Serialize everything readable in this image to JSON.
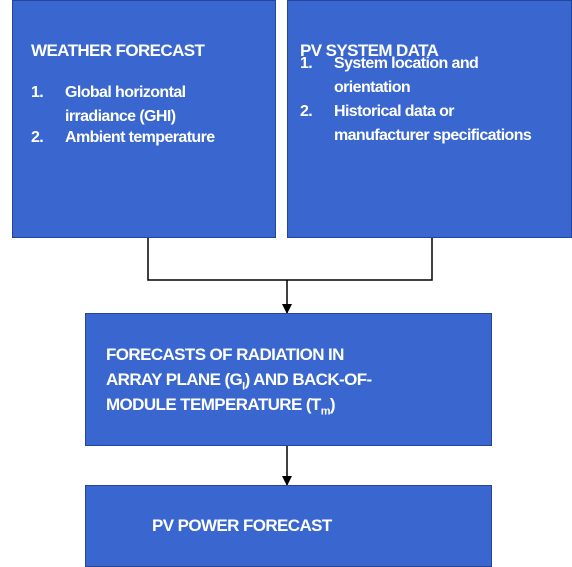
{
  "nodes": [
    {
      "title": "WEATHER FORECAST",
      "items": [
        {
          "number": "1.",
          "lines": [
            "Global horizontal",
            "irradiance (GHI)"
          ]
        },
        {
          "number": "2.",
          "lines": [
            "Ambient temperature"
          ]
        }
      ]
    },
    {
      "title": "PV SYSTEM DATA",
      "items": [
        {
          "number": "1.",
          "lines": [
            "System location and",
            "orientation"
          ]
        },
        {
          "number": "2.",
          "lines": [
            "Historical data or",
            "manufacturer specifications"
          ]
        }
      ]
    },
    {
      "lines": [
        [
          "FORECASTS OF RADIATION IN"
        ],
        [
          "ARRAY PLANE (G",
          "I",
          ") AND BACK-OF-"
        ],
        [
          "MODULE TEMPERATURE (T",
          "m",
          ")"
        ]
      ]
    },
    {
      "lines": [
        [
          "PV POWER FORECAST"
        ]
      ]
    }
  ]
}
